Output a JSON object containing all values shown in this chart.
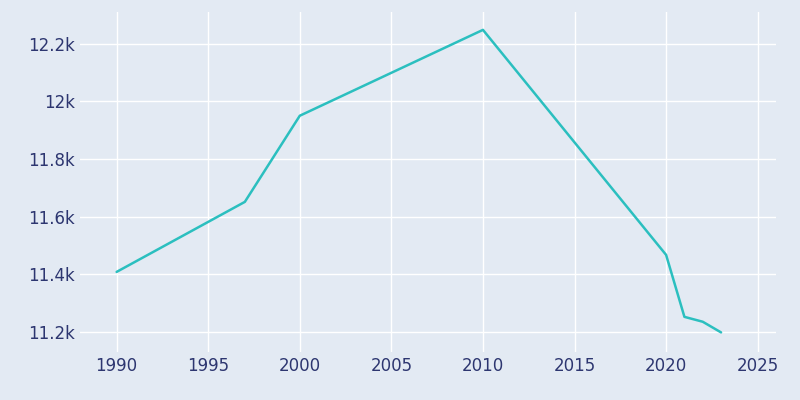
{
  "years": [
    1990,
    1997,
    2000,
    2010,
    2020,
    2021,
    2022,
    2023
  ],
  "population": [
    11408,
    11651,
    11950,
    12248,
    11467,
    11252,
    11235,
    11198
  ],
  "line_color": "#2bbfbf",
  "bg_color": "#e3eaf3",
  "grid_color": "#ffffff",
  "tick_color": "#2d3670",
  "xlim": [
    1988,
    2026
  ],
  "ylim": [
    11130,
    12310
  ],
  "yticks": [
    11200,
    11400,
    11600,
    11800,
    12000,
    12200
  ],
  "xticks": [
    1990,
    1995,
    2000,
    2005,
    2010,
    2015,
    2020,
    2025
  ],
  "tick_fontsize": 12
}
